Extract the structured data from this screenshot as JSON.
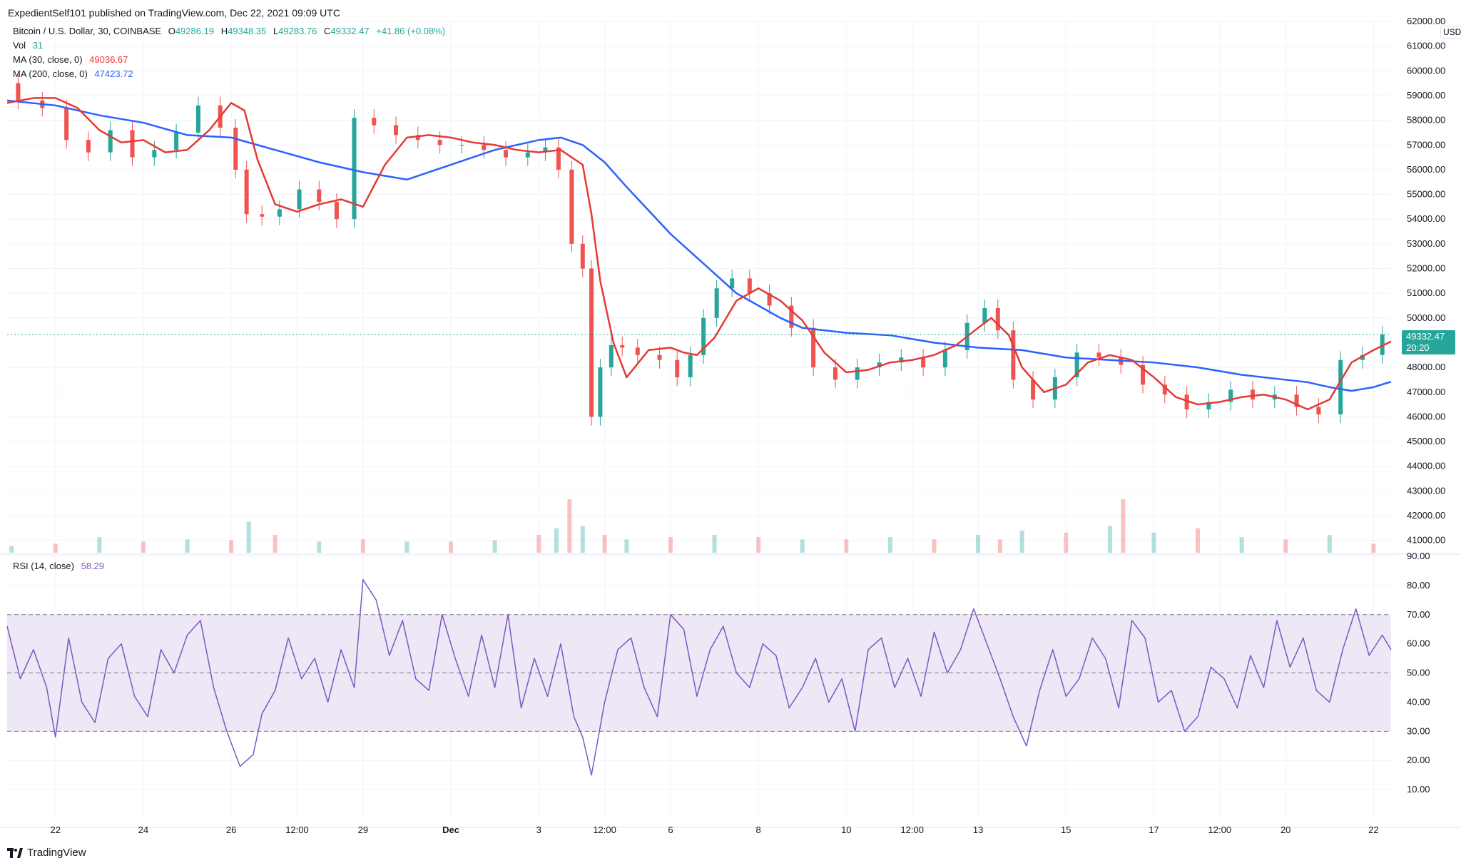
{
  "header": {
    "publisher_line": "ExpedientSelf101 published on TradingView.com, Dec 22, 2021 09:09 UTC"
  },
  "legend": {
    "symbol": "Bitcoin / U.S. Dollar, 30, COINBASE",
    "ohlc": {
      "o_label": "O",
      "o_value": "49286.19",
      "h_label": "H",
      "h_value": "49348.35",
      "l_label": "L",
      "l_value": "49283.76",
      "c_label": "C",
      "c_value": "49332.47",
      "change": "+41.86 (+0.08%)"
    },
    "vol_label": "Vol",
    "vol_value": "31",
    "ma30_label": "MA (30, close, 0)",
    "ma30_value": "49036.67",
    "ma200_label": "MA (200, close, 0)",
    "ma200_value": "47423.72",
    "rsi_label": "RSI (14, close)",
    "rsi_value": "58.29"
  },
  "price_axis": {
    "currency_button": "USD",
    "ticks": [
      "62000.00",
      "61000.00",
      "60000.00",
      "59000.00",
      "58000.00",
      "57000.00",
      "56000.00",
      "55000.00",
      "54000.00",
      "53000.00",
      "52000.00",
      "51000.00",
      "50000.00",
      "48000.00",
      "47000.00",
      "46000.00",
      "45000.00",
      "44000.00",
      "43000.00",
      "42000.00",
      "41000.00"
    ],
    "current_price": "49332.47",
    "countdown": "20:20"
  },
  "rsi_axis": {
    "ticks": [
      "90.00",
      "80.00",
      "70.00",
      "60.00",
      "50.00",
      "40.00",
      "30.00",
      "20.00",
      "10.00"
    ]
  },
  "time_axis": {
    "ticks": [
      "22",
      "24",
      "26",
      "12:00",
      "29",
      "Dec",
      "3",
      "12:00",
      "6",
      "8",
      "10",
      "12:00",
      "13",
      "15",
      "17",
      "12:00",
      "20",
      "22"
    ]
  },
  "footer": {
    "brand": "TradingView"
  },
  "colors": {
    "up": "#26a69a",
    "down": "#ef5350",
    "ma30": "#e53935",
    "ma200": "#2962ff",
    "rsi": "#7e57c2",
    "rsi_band": "#ede7f6",
    "grid": "#f0f3fa"
  },
  "chart_data": [
    {
      "type": "line",
      "name_hint": "price",
      "ylim": [
        40500,
        62000
      ],
      "x_ticks": [
        "22",
        "24",
        "26",
        "12:00",
        "29",
        "Dec",
        "3",
        "12:00",
        "6",
        "8",
        "10",
        "12:00",
        "13",
        "15",
        "17",
        "12:00",
        "20",
        "22"
      ],
      "x_tick_index": [
        0,
        2,
        4,
        5.5,
        7,
        9,
        11,
        12.5,
        14,
        16,
        18,
        19.5,
        21,
        23,
        25,
        26.5,
        28,
        30
      ],
      "last_price": 49332.47,
      "series": [
        {
          "name": "Bitcoin / U.S. Dollar",
          "x": [
            -1.1,
            -0.6,
            0,
            0.5,
            1,
            1.5,
            2,
            2.5,
            3,
            3.5,
            4,
            4.2,
            4.5,
            4.9,
            5.3,
            5.8,
            6.2,
            6.6,
            7,
            7.5,
            8,
            8.5,
            9,
            9.5,
            10,
            10.5,
            11,
            11.3,
            11.6,
            11.9,
            12.1,
            12.3,
            12.5,
            12.8,
            13,
            13.5,
            14,
            14.3,
            14.6,
            14.9,
            15.2,
            15.6,
            16,
            16.5,
            17,
            17.5,
            18,
            18.5,
            19,
            19.5,
            20,
            20.5,
            21,
            21.3,
            21.6,
            22,
            22.5,
            23,
            23.5,
            24,
            24.5,
            25,
            25.5,
            26,
            26.5,
            27,
            27.5,
            28,
            28.5,
            29,
            29.5,
            30,
            30.4
          ],
          "values": [
            59500,
            58800,
            58500,
            57200,
            56700,
            57600,
            56500,
            56800,
            57500,
            58600,
            57700,
            56000,
            54200,
            54100,
            54400,
            55200,
            54700,
            54000,
            58100,
            57800,
            57400,
            57200,
            57000,
            57000,
            56800,
            56500,
            56700,
            56900,
            56000,
            53000,
            52000,
            46000,
            48000,
            48900,
            48800,
            48500,
            48300,
            47600,
            48500,
            50000,
            51200,
            51600,
            51000,
            50500,
            49600,
            48000,
            47500,
            48000,
            48200,
            48400,
            48000,
            48700,
            49800,
            50400,
            49500,
            47500,
            46700,
            47600,
            48600,
            48400,
            48100,
            47300,
            46900,
            46300,
            46600,
            47100,
            46700,
            46900,
            46400,
            46100,
            48300,
            48500,
            49330
          ]
        },
        {
          "name": "MA (30, close, 0)",
          "x": [
            -1.1,
            -0.5,
            0,
            0.5,
            1,
            1.5,
            2,
            2.5,
            3,
            3.5,
            4,
            4.3,
            4.6,
            5,
            5.5,
            6,
            6.5,
            7,
            7.5,
            8,
            8.5,
            9,
            9.5,
            10,
            10.5,
            11,
            11.5,
            12,
            12.2,
            12.4,
            12.7,
            13,
            13.5,
            14,
            14.3,
            14.6,
            15,
            15.5,
            16,
            16.5,
            17,
            17.5,
            18,
            18.5,
            19,
            19.5,
            20,
            20.5,
            21,
            21.3,
            21.7,
            22,
            22.5,
            23,
            23.5,
            24,
            24.5,
            25,
            25.5,
            26,
            26.5,
            27,
            27.5,
            28,
            28.5,
            29,
            29.5,
            30,
            30.4
          ],
          "values": [
            58700,
            58900,
            58900,
            58500,
            57600,
            57100,
            57200,
            56700,
            56800,
            57600,
            58700,
            58400,
            56400,
            54600,
            54300,
            54600,
            54800,
            54500,
            56200,
            57300,
            57400,
            57300,
            57100,
            57000,
            56800,
            56700,
            56800,
            56200,
            54200,
            51500,
            49000,
            47600,
            48700,
            48800,
            48600,
            48500,
            49200,
            50700,
            51200,
            50700,
            49900,
            48600,
            47800,
            47900,
            48200,
            48300,
            48500,
            48900,
            49600,
            50000,
            49300,
            48000,
            47000,
            47300,
            48200,
            48500,
            48300,
            47600,
            46800,
            46500,
            46600,
            46800,
            46900,
            46700,
            46300,
            46700,
            48200,
            48700,
            49050
          ]
        },
        {
          "name": "MA (200, close, 0)",
          "x": [
            -1.1,
            0,
            1,
            2,
            3,
            4,
            5,
            6,
            7,
            8,
            9,
            10,
            11,
            11.5,
            12,
            12.5,
            13,
            14,
            15,
            15.5,
            16,
            16.5,
            17,
            17.5,
            18,
            19,
            20,
            21,
            22,
            23,
            24,
            25,
            26,
            27,
            28,
            28.5,
            29,
            29.5,
            30,
            30.4
          ],
          "values": [
            58800,
            58600,
            58200,
            57900,
            57400,
            57300,
            56800,
            56300,
            55900,
            55600,
            56200,
            56800,
            57200,
            57300,
            57000,
            56300,
            55300,
            53400,
            51800,
            51000,
            50500,
            50000,
            49600,
            49500,
            49400,
            49300,
            49000,
            48800,
            48700,
            48400,
            48300,
            48200,
            48000,
            47700,
            47500,
            47400,
            47200,
            47050,
            47200,
            47420
          ]
        }
      ]
    },
    {
      "type": "bar",
      "name_hint": "volume",
      "x": [
        -1,
        0,
        1,
        2,
        3,
        4,
        4.4,
        5,
        6,
        7,
        8,
        9,
        10,
        11,
        11.4,
        11.7,
        12,
        12.5,
        13,
        14,
        15,
        16,
        17,
        18,
        19,
        20,
        21,
        21.5,
        22,
        23,
        24,
        24.3,
        25,
        26,
        27,
        28,
        29,
        30
      ],
      "values": [
        15,
        20,
        35,
        25,
        30,
        28,
        70,
        40,
        25,
        30,
        25,
        25,
        28,
        40,
        55,
        120,
        60,
        40,
        30,
        35,
        40,
        35,
        30,
        30,
        35,
        30,
        40,
        30,
        50,
        45,
        60,
        120,
        45,
        55,
        35,
        30,
        40,
        20
      ]
    },
    {
      "type": "line",
      "name_hint": "rsi",
      "ylim": [
        0,
        90
      ],
      "bands": [
        30,
        50,
        70
      ],
      "series": [
        {
          "name": "RSI (14, close)",
          "x": [
            -1.1,
            -0.8,
            -0.5,
            -0.2,
            0,
            0.3,
            0.6,
            0.9,
            1.2,
            1.5,
            1.8,
            2.1,
            2.4,
            2.7,
            3,
            3.3,
            3.6,
            3.9,
            4.2,
            4.5,
            4.7,
            5,
            5.3,
            5.6,
            5.9,
            6.2,
            6.5,
            6.8,
            7,
            7.3,
            7.6,
            7.9,
            8.2,
            8.5,
            8.8,
            9.1,
            9.4,
            9.7,
            10,
            10.3,
            10.6,
            10.9,
            11.2,
            11.5,
            11.8,
            12,
            12.2,
            12.5,
            12.8,
            13.1,
            13.4,
            13.7,
            14,
            14.3,
            14.6,
            14.9,
            15.2,
            15.5,
            15.8,
            16.1,
            16.4,
            16.7,
            17,
            17.3,
            17.6,
            17.9,
            18.2,
            18.5,
            18.8,
            19.1,
            19.4,
            19.7,
            20,
            20.3,
            20.6,
            20.9,
            21.2,
            21.5,
            21.8,
            22.1,
            22.4,
            22.7,
            23,
            23.3,
            23.6,
            23.9,
            24.2,
            24.5,
            24.8,
            25.1,
            25.4,
            25.7,
            26,
            26.3,
            26.6,
            26.9,
            27.2,
            27.5,
            27.8,
            28.1,
            28.4,
            28.7,
            29,
            29.3,
            29.6,
            29.9,
            30.2,
            30.4
          ],
          "values": [
            66,
            48,
            58,
            45,
            28,
            62,
            40,
            33,
            55,
            60,
            42,
            35,
            58,
            50,
            63,
            68,
            45,
            30,
            18,
            22,
            36,
            44,
            62,
            48,
            55,
            40,
            58,
            45,
            82,
            75,
            56,
            68,
            48,
            44,
            70,
            55,
            42,
            63,
            45,
            70,
            38,
            55,
            42,
            60,
            35,
            28,
            15,
            40,
            58,
            62,
            45,
            35,
            70,
            65,
            42,
            58,
            66,
            50,
            45,
            60,
            56,
            38,
            45,
            55,
            40,
            48,
            30,
            58,
            62,
            45,
            55,
            42,
            64,
            50,
            58,
            72,
            60,
            48,
            35,
            25,
            44,
            58,
            42,
            48,
            62,
            55,
            38,
            68,
            62,
            40,
            44,
            30,
            35,
            52,
            48,
            38,
            56,
            45,
            68,
            52,
            62,
            44,
            40,
            58,
            72,
            56,
            63,
            58
          ]
        }
      ]
    }
  ]
}
